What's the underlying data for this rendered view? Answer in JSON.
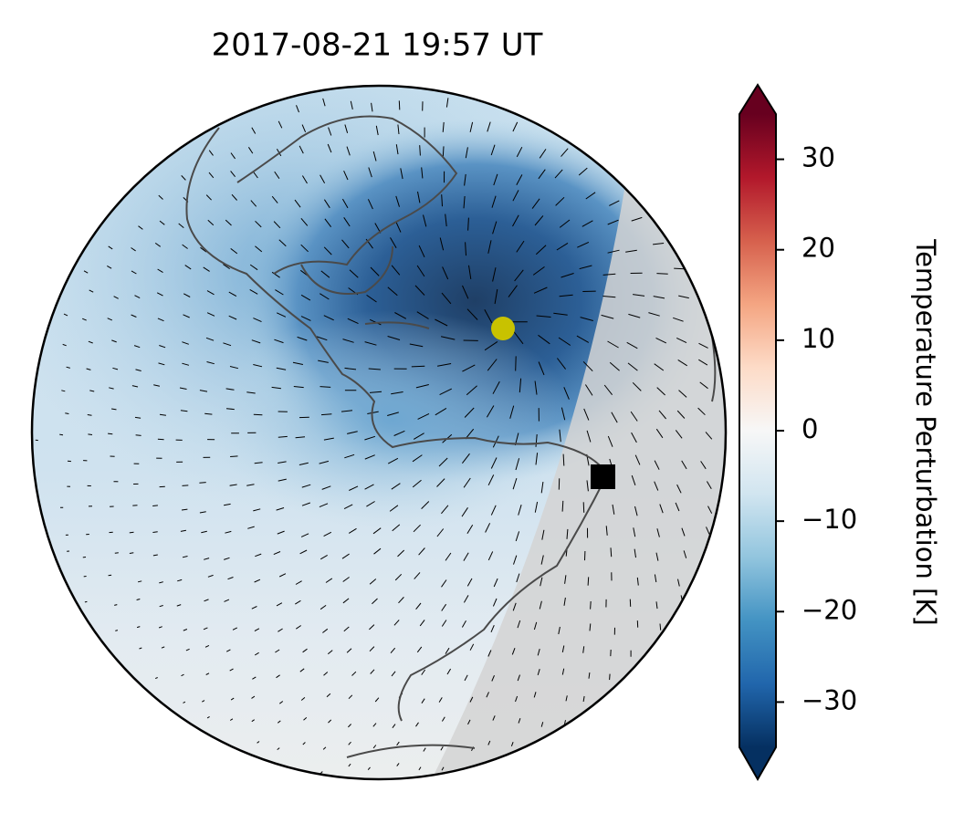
{
  "chart_data": {
    "type": "map",
    "title": "2017-08-21  19:57 UT",
    "colorbar": {
      "label": "Temperature Perturbation [K]",
      "colormap": "RdBu_r",
      "extend": "both",
      "ylim": [
        -35,
        35
      ],
      "yticks": [
        {
          "value": -30,
          "label": "−30"
        },
        {
          "value": -20,
          "label": "−20"
        },
        {
          "value": -10,
          "label": "−10"
        },
        0,
        10,
        20,
        30
      ]
    }
  }
}
